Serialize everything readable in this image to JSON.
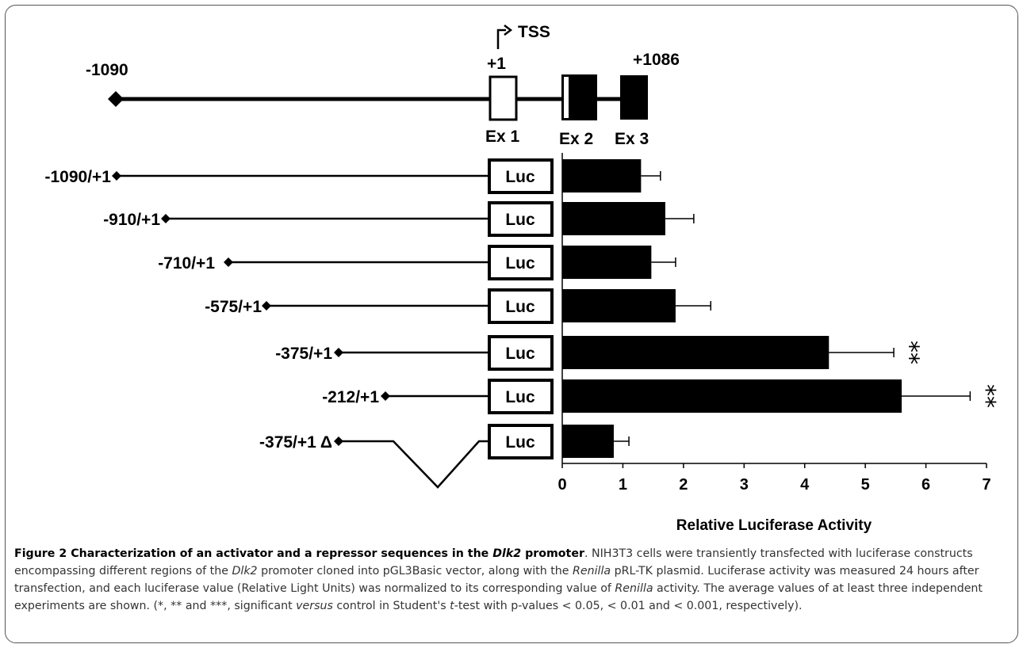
{
  "gene_map": {
    "tss_label": "TSS",
    "start_label": "-1090",
    "plus1_label": "+1",
    "end_label": "+1086",
    "exons": [
      "Ex 1",
      "Ex 2",
      "Ex 3"
    ]
  },
  "constructs": [
    {
      "label": "-1090/+1"
    },
    {
      "label": "-910/+1"
    },
    {
      "label": "-710/+1"
    },
    {
      "label": "-575/+1"
    },
    {
      "label": "-375/+1"
    },
    {
      "label": "-212/+1"
    },
    {
      "label": "-375/+1 Δ"
    }
  ],
  "reporter_label": "Luc",
  "chart_data": {
    "type": "bar",
    "orientation": "horizontal",
    "categories": [
      "-1090/+1",
      "-910/+1",
      "-710/+1",
      "-575/+1",
      "-375/+1",
      "-212/+1",
      "-375/+1 Δ"
    ],
    "values": [
      1.3,
      1.7,
      1.47,
      1.87,
      4.4,
      5.6,
      0.85
    ],
    "errors": [
      0.32,
      0.47,
      0.4,
      0.58,
      1.07,
      1.13,
      0.25
    ],
    "significance": [
      "",
      "",
      "",
      "",
      "**",
      "**",
      ""
    ],
    "xlabel": "Relative Luciferase Activity",
    "xlim": [
      0,
      7
    ],
    "xticks": [
      "0",
      "1",
      "2",
      "3",
      "4",
      "5",
      "6",
      "7"
    ],
    "grid": false,
    "bar_color": "#000000"
  },
  "caption": {
    "label": "Figure 2",
    "title_a": " Characterization of an activator and a repressor sequences in the ",
    "title_gene": "Dlk2",
    "title_b": " promoter",
    "t1": ". NIH3T3 cells were transiently transfected with luciferase constructs encompassing different regions of the ",
    "gene": "Dlk2",
    "t2": " promoter cloned into pGL3Basic vector, along with the ",
    "renilla1": "Renilla",
    "t3": " pRL-TK plasmid. Luciferase activity was measured 24 hours after transfection, and each luciferase value (Relative Light Units) was normalized to its corresponding value of ",
    "renilla2": "Renilla",
    "t4": " activity. The average values of at least three independent experiments are shown. (*, ** and ***, significant ",
    "versus": "versus",
    "t5": " control in Student's ",
    "ttest": "t",
    "t6": "-test with p-values < 0.05, < 0.01 and < 0.001, respectively)."
  }
}
